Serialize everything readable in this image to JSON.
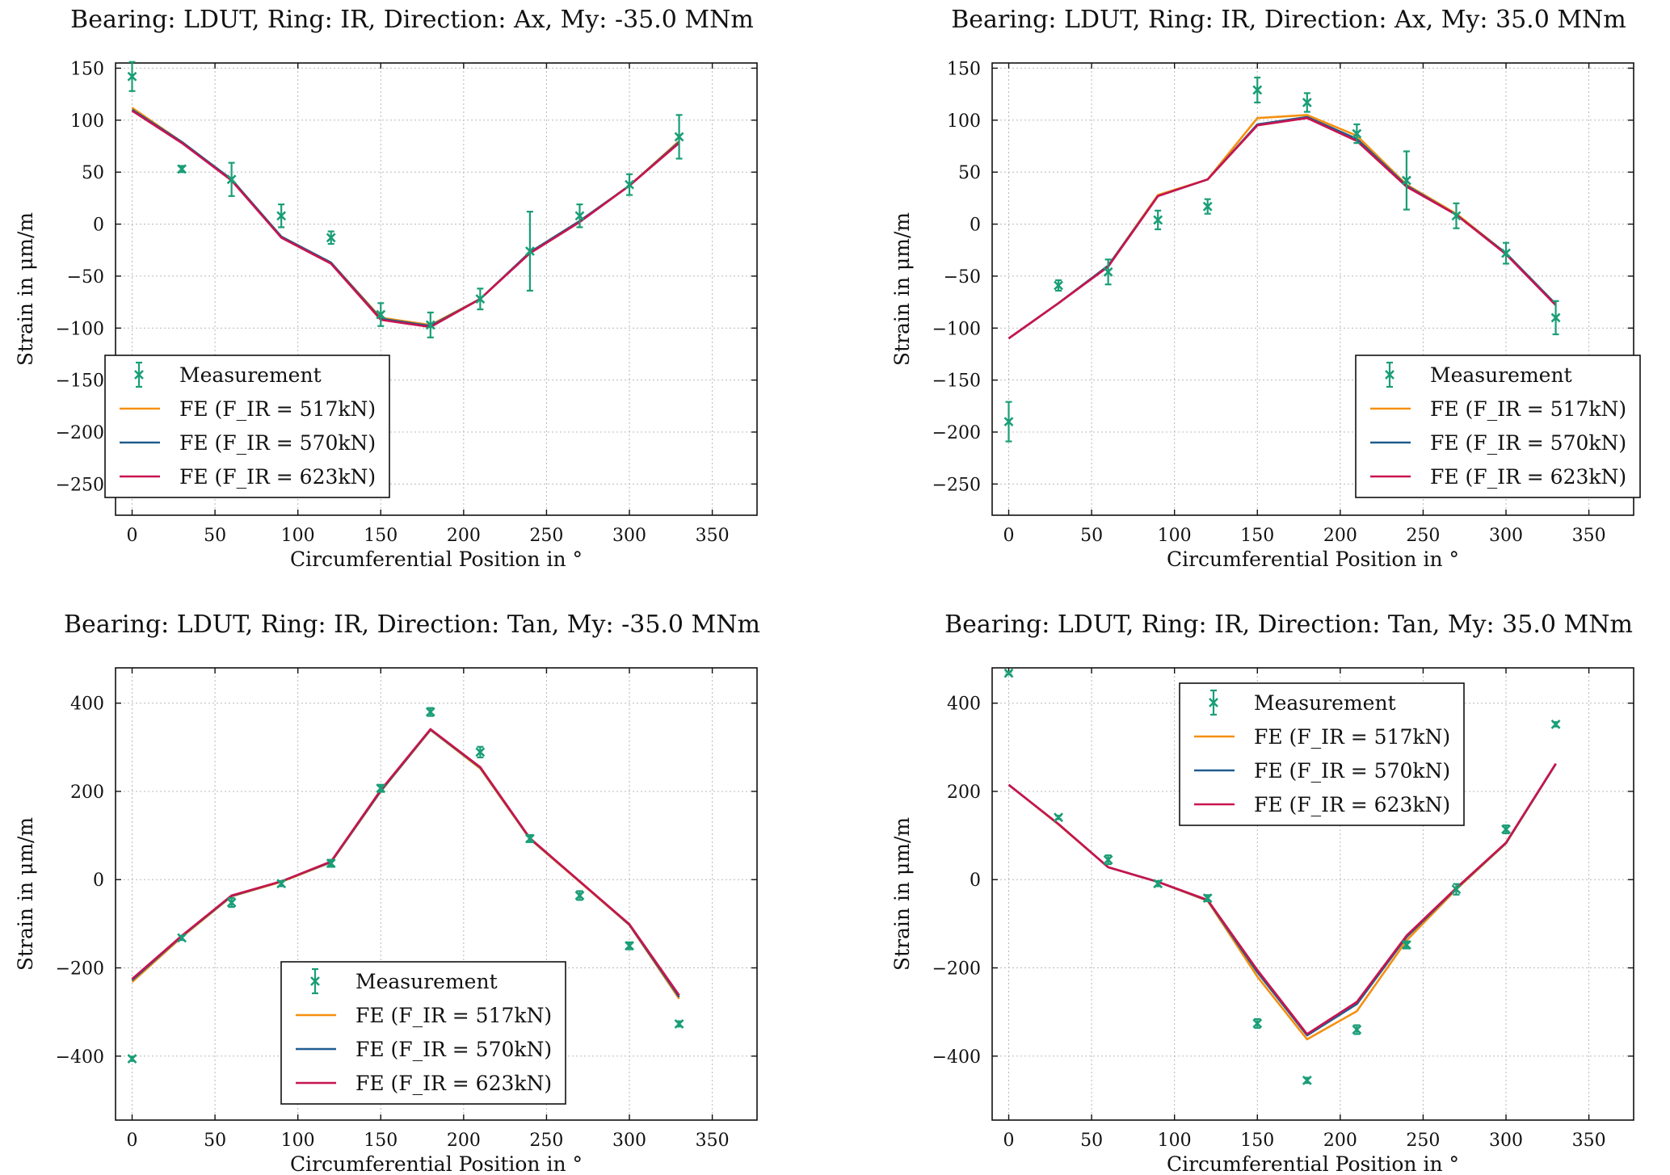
{
  "figure": {
    "xlabel": "Circumferential Position in °",
    "ylabel": "Strain in μm/m"
  },
  "chart_data": [
    {
      "type": "line",
      "title": "Bearing: LDUT, Ring: IR, Direction: Ax, My: -35.0 MNm",
      "xlabel": "Circumferential Position in °",
      "ylabel": "Strain in μm/m",
      "xlim": [
        -10,
        377
      ],
      "ylim": [
        -280,
        155
      ],
      "xticks": [
        0,
        50,
        100,
        150,
        200,
        250,
        300,
        350
      ],
      "yticks": [
        -250,
        -200,
        -150,
        -100,
        -50,
        0,
        50,
        100,
        150
      ],
      "grid": true,
      "legend_position": "lower-left",
      "x": [
        0,
        30,
        60,
        90,
        120,
        150,
        180,
        210,
        240,
        270,
        300,
        330
      ],
      "measurement": {
        "name": "Measurement",
        "color": "#1a9e77",
        "y": [
          142,
          53,
          43,
          8,
          -13,
          -87,
          -97,
          -72,
          -26,
          8,
          38,
          84
        ],
        "error": [
          14,
          3,
          16,
          11,
          6,
          11,
          12,
          10,
          38,
          11,
          10,
          21
        ]
      },
      "series": [
        {
          "name": "FE (F_IR = 517kN)",
          "color": "#f5900f",
          "values": [
            112,
            79,
            43,
            -12,
            -37,
            -90,
            -97,
            -72,
            -27,
            3,
            37,
            80
          ]
        },
        {
          "name": "FE (F_IR = 570kN)",
          "color": "#1f5c8f",
          "values": [
            110,
            79,
            43,
            -12,
            -37,
            -91,
            -98,
            -72,
            -27,
            3,
            37,
            79
          ]
        },
        {
          "name": "FE (F_IR = 623kN)",
          "color": "#c8144f",
          "values": [
            109,
            78,
            42,
            -13,
            -38,
            -92,
            -99,
            -72,
            -28,
            2,
            37,
            78
          ]
        }
      ]
    },
    {
      "type": "line",
      "title": "Bearing: LDUT, Ring: IR, Direction: Ax, My: 35.0 MNm",
      "xlabel": "Circumferential Position in °",
      "ylabel": "Strain in μm/m",
      "xlim": [
        -10,
        377
      ],
      "ylim": [
        -280,
        155
      ],
      "xticks": [
        0,
        50,
        100,
        150,
        200,
        250,
        300,
        350
      ],
      "yticks": [
        -250,
        -200,
        -150,
        -100,
        -50,
        0,
        50,
        100,
        150
      ],
      "grid": true,
      "legend_position": "lower-right",
      "x": [
        0,
        30,
        60,
        90,
        120,
        150,
        180,
        210,
        240,
        270,
        300,
        330
      ],
      "measurement": {
        "name": "Measurement",
        "color": "#1a9e77",
        "y": [
          -190,
          -59,
          -46,
          4,
          17,
          129,
          117,
          87,
          42,
          8,
          -28,
          -90
        ],
        "error": [
          19,
          5,
          12,
          9,
          7,
          12,
          9,
          9,
          28,
          12,
          10,
          16
        ]
      },
      "series": [
        {
          "name": "FE (F_IR = 517kN)",
          "color": "#f5900f",
          "values": [
            -110,
            -76,
            -40,
            28,
            43,
            102,
            105,
            85,
            38,
            10,
            -28,
            -77
          ]
        },
        {
          "name": "FE (F_IR = 570kN)",
          "color": "#1f5c8f",
          "values": [
            -110,
            -76,
            -40,
            27,
            43,
            96,
            103,
            82,
            37,
            9,
            -28,
            -77
          ]
        },
        {
          "name": "FE (F_IR = 623kN)",
          "color": "#c8144f",
          "values": [
            -110,
            -76,
            -41,
            27,
            43,
            95,
            102,
            80,
            36,
            9,
            -29,
            -78
          ]
        }
      ]
    },
    {
      "type": "line",
      "title": "Bearing: LDUT, Ring: IR, Direction: Tan, My: -35.0 MNm",
      "xlabel": "Circumferential Position in °",
      "ylabel": "Strain in μm/m",
      "xlim": [
        -10,
        377
      ],
      "ylim": [
        -545,
        480
      ],
      "xticks": [
        0,
        50,
        100,
        150,
        200,
        250,
        300,
        350
      ],
      "yticks": [
        -400,
        -200,
        0,
        200,
        400
      ],
      "grid": true,
      "legend_position": "lower-center",
      "x": [
        0,
        30,
        60,
        90,
        120,
        150,
        180,
        210,
        240,
        270,
        300,
        330
      ],
      "measurement": {
        "name": "Measurement",
        "color": "#1a9e77",
        "y": [
          -406,
          -132,
          -52,
          -9,
          37,
          207,
          380,
          289,
          93,
          -36,
          -150,
          -327
        ],
        "error": [
          5,
          5,
          10,
          6,
          8,
          8,
          9,
          12,
          8,
          10,
          8,
          6
        ]
      },
      "series": [
        {
          "name": "FE (F_IR = 517kN)",
          "color": "#f5900f",
          "values": [
            -232,
            -130,
            -38,
            -5,
            39,
            200,
            339,
            252,
            92,
            -5,
            -103,
            -270
          ]
        },
        {
          "name": "FE (F_IR = 570kN)",
          "color": "#1f5c8f",
          "values": [
            -228,
            -128,
            -37,
            -4,
            40,
            201,
            340,
            254,
            93,
            -4,
            -102,
            -266
          ]
        },
        {
          "name": "FE (F_IR = 623kN)",
          "color": "#c8144f",
          "values": [
            -225,
            -127,
            -36,
            -4,
            41,
            203,
            341,
            255,
            94,
            -4,
            -101,
            -262
          ]
        }
      ]
    },
    {
      "type": "line",
      "title": "Bearing: LDUT, Ring: IR, Direction: Tan, My: 35.0 MNm",
      "xlabel": "Circumferential Position in °",
      "ylabel": "Strain in μm/m",
      "xlim": [
        -10,
        377
      ],
      "ylim": [
        -545,
        480
      ],
      "xticks": [
        0,
        50,
        100,
        150,
        200,
        250,
        300,
        350
      ],
      "yticks": [
        -400,
        -200,
        0,
        200,
        400
      ],
      "grid": true,
      "legend_position": "upper-center",
      "x": [
        0,
        30,
        60,
        90,
        120,
        150,
        180,
        210,
        240,
        270,
        300,
        330
      ],
      "measurement": {
        "name": "Measurement",
        "color": "#1a9e77",
        "y": [
          468,
          141,
          45,
          -9,
          -42,
          -326,
          -455,
          -340,
          -148,
          -22,
          114,
          352
        ],
        "error": [
          3,
          4,
          10,
          6,
          7,
          10,
          6,
          10,
          8,
          12,
          9,
          5
        ]
      },
      "series": [
        {
          "name": "FE (F_IR = 517kN)",
          "color": "#f5900f",
          "values": [
            215,
            125,
            28,
            -5,
            -48,
            -220,
            -362,
            -298,
            -138,
            -22,
            82,
            262
          ]
        },
        {
          "name": "FE (F_IR = 570kN)",
          "color": "#1f5c8f",
          "values": [
            215,
            126,
            28,
            -5,
            -47,
            -210,
            -353,
            -282,
            -130,
            -20,
            83,
            262
          ]
        },
        {
          "name": "FE (F_IR = 623kN)",
          "color": "#c8144f",
          "values": [
            215,
            126,
            28,
            -5,
            -46,
            -205,
            -350,
            -277,
            -127,
            -19,
            84,
            263
          ]
        }
      ]
    }
  ]
}
